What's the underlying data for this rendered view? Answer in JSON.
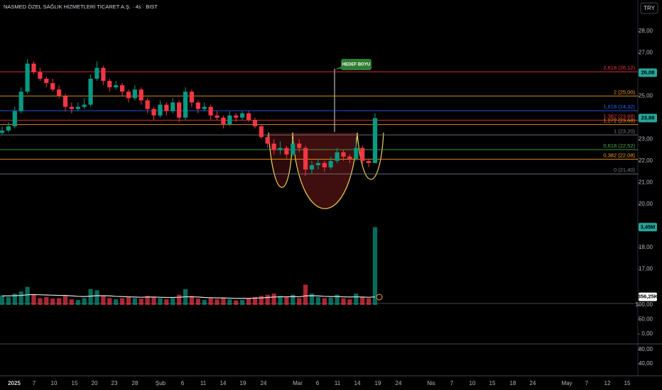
{
  "chart_data": {
    "type": "candlestick",
    "title": "NASMED ÖZEL SAĞLIK HİZMETLERİ TİCARET A.Ş. · 4s · BIST",
    "currency_button": "TRY",
    "annotation": "HEDEF BOYU",
    "ylim": [
      15.34,
      29.44
    ],
    "yticks": [
      {
        "value": 28,
        "label": "28,00"
      },
      {
        "value": 27,
        "label": "27,00"
      },
      {
        "value": 25,
        "label": "25,00"
      },
      {
        "value": 23,
        "label": "23,00"
      },
      {
        "value": 22,
        "label": "22,00"
      },
      {
        "value": 21,
        "label": "21,00"
      },
      {
        "value": 20,
        "label": "20,00"
      },
      {
        "value": 18,
        "label": "18,00"
      },
      {
        "value": 17,
        "label": "17,00"
      }
    ],
    "up_color": "#089981",
    "down_color": "#f23645",
    "ohlc": [
      [
        23.3,
        23.6,
        23.2,
        23.4
      ],
      [
        23.4,
        23.8,
        23.3,
        23.6
      ],
      [
        23.6,
        24.5,
        23.5,
        24.3
      ],
      [
        24.3,
        25.4,
        24.2,
        25.2
      ],
      [
        25.2,
        26.7,
        25.1,
        26.5
      ],
      [
        26.5,
        26.6,
        26.0,
        26.1
      ],
      [
        26.1,
        26.3,
        25.7,
        25.8
      ],
      [
        25.8,
        25.9,
        25.4,
        25.6
      ],
      [
        25.6,
        25.8,
        25.2,
        25.3
      ],
      [
        25.3,
        25.5,
        24.9,
        25.0
      ],
      [
        25.0,
        25.1,
        24.3,
        24.5
      ],
      [
        24.5,
        24.7,
        24.2,
        24.4
      ],
      [
        24.4,
        24.7,
        24.3,
        24.5
      ],
      [
        24.5,
        24.9,
        24.4,
        24.6
      ],
      [
        24.6,
        26.0,
        24.5,
        25.8
      ],
      [
        25.8,
        26.6,
        25.7,
        26.3
      ],
      [
        26.3,
        26.4,
        25.5,
        25.7
      ],
      [
        25.7,
        25.8,
        25.2,
        25.4
      ],
      [
        25.4,
        25.7,
        25.3,
        25.5
      ],
      [
        25.5,
        25.6,
        25.0,
        25.2
      ],
      [
        25.2,
        25.3,
        24.7,
        24.9
      ],
      [
        24.9,
        25.5,
        24.8,
        25.3
      ],
      [
        25.3,
        25.4,
        24.6,
        24.8
      ],
      [
        24.8,
        24.9,
        24.2,
        24.4
      ],
      [
        24.4,
        24.5,
        23.9,
        24.1
      ],
      [
        24.1,
        24.8,
        24.0,
        24.6
      ],
      [
        24.6,
        24.7,
        24.1,
        24.3
      ],
      [
        24.3,
        24.9,
        24.2,
        24.7
      ],
      [
        24.7,
        24.8,
        23.8,
        24.0
      ],
      [
        24.0,
        25.4,
        23.9,
        25.2
      ],
      [
        25.2,
        25.3,
        24.5,
        24.7
      ],
      [
        24.7,
        24.8,
        24.2,
        24.4
      ],
      [
        24.4,
        24.7,
        24.3,
        24.5
      ],
      [
        24.5,
        24.6,
        23.9,
        24.1
      ],
      [
        24.1,
        24.3,
        23.9,
        24.0
      ],
      [
        24.0,
        24.1,
        23.5,
        23.7
      ],
      [
        23.7,
        24.3,
        23.6,
        24.1
      ],
      [
        24.1,
        24.2,
        23.8,
        24.0
      ],
      [
        24.0,
        24.3,
        23.9,
        24.2
      ],
      [
        24.2,
        24.3,
        23.8,
        23.9
      ],
      [
        23.9,
        24.0,
        23.5,
        23.6
      ],
      [
        23.6,
        23.7,
        23.0,
        23.1
      ],
      [
        23.1,
        23.2,
        22.6,
        22.8
      ],
      [
        22.8,
        23.0,
        22.3,
        22.5
      ],
      [
        22.5,
        22.9,
        22.3,
        22.6
      ],
      [
        22.6,
        22.7,
        22.1,
        22.3
      ],
      [
        22.3,
        23.0,
        22.2,
        22.8
      ],
      [
        22.8,
        23.0,
        22.4,
        22.6
      ],
      [
        22.6,
        22.7,
        21.3,
        21.6
      ],
      [
        21.6,
        22.0,
        21.4,
        21.8
      ],
      [
        21.8,
        22.1,
        21.6,
        21.9
      ],
      [
        21.9,
        22.0,
        21.5,
        21.7
      ],
      [
        21.7,
        22.2,
        21.6,
        22.0
      ],
      [
        22.0,
        22.6,
        21.9,
        22.4
      ],
      [
        22.4,
        22.5,
        22.0,
        22.2
      ],
      [
        22.2,
        22.3,
        21.9,
        22.1
      ],
      [
        22.1,
        23.1,
        22.0,
        22.6
      ],
      [
        22.6,
        22.7,
        21.8,
        22.0
      ],
      [
        22.0,
        22.1,
        21.7,
        21.9
      ],
      [
        21.9,
        24.2,
        21.9,
        23.98
      ]
    ],
    "current_price": {
      "value": 23.98,
      "label": "23,98"
    },
    "high_price": {
      "value": 26.08,
      "label": "26,08"
    },
    "fib_levels": [
      {
        "value": 26.12,
        "label": "2,618 (26,12)",
        "color": "#f23645"
      },
      {
        "value": 25.0,
        "label": "2 (25,00)",
        "color": "#f7a21b"
      },
      {
        "value": 24.32,
        "label": "1,618 (24,32)",
        "color": "#2962ff"
      },
      {
        "value": 23.88,
        "label": "1,382 (23,88)",
        "color": "#f23645"
      },
      {
        "value": 23.68,
        "label": "1,272 (23,68)",
        "color": "#f7a21b"
      },
      {
        "value": 23.2,
        "label": "1 (23,20)",
        "color": "#787b86"
      },
      {
        "value": 22.52,
        "label": "0,618 (22,52)",
        "color": "#4caf50"
      },
      {
        "value": 22.08,
        "label": "0,382 (22,08)",
        "color": "#f7a21b"
      },
      {
        "value": 21.4,
        "label": "0 (21,40)",
        "color": "#787b86"
      }
    ],
    "volume": {
      "values": [
        0.42,
        0.35,
        0.5,
        0.6,
        0.8,
        0.45,
        0.3,
        0.35,
        0.28,
        0.3,
        0.4,
        0.25,
        0.22,
        0.3,
        0.7,
        0.65,
        0.4,
        0.3,
        0.25,
        0.3,
        0.35,
        0.3,
        0.28,
        0.4,
        0.35,
        0.3,
        0.25,
        0.3,
        0.45,
        0.7,
        0.4,
        0.28,
        0.22,
        0.3,
        0.25,
        0.3,
        0.25,
        0.2,
        0.22,
        0.3,
        0.35,
        0.4,
        0.45,
        0.5,
        0.4,
        0.35,
        0.45,
        0.3,
        0.9,
        0.5,
        0.35,
        0.3,
        0.32,
        0.45,
        0.3,
        0.25,
        0.5,
        0.35,
        0.3,
        3.45
      ],
      "current": {
        "value": 3.45,
        "label": "3,45M"
      },
      "ma": [
        0.4,
        0.4,
        0.41,
        0.42,
        0.45,
        0.46,
        0.45,
        0.44,
        0.43,
        0.42,
        0.42,
        0.4,
        0.38,
        0.37,
        0.39,
        0.41,
        0.41,
        0.4,
        0.38,
        0.37,
        0.36,
        0.35,
        0.34,
        0.35,
        0.35,
        0.34,
        0.33,
        0.33,
        0.34,
        0.36,
        0.36,
        0.35,
        0.33,
        0.32,
        0.31,
        0.31,
        0.3,
        0.29,
        0.29,
        0.29,
        0.3,
        0.31,
        0.33,
        0.35,
        0.36,
        0.36,
        0.37,
        0.36,
        0.4,
        0.41,
        0.4,
        0.38,
        0.37,
        0.37,
        0.36,
        0.35,
        0.36,
        0.35,
        0.34,
        0.35625
      ],
      "ma_current": {
        "value": 0.35625,
        "label": "356,25K"
      }
    },
    "panes": [
      {
        "ylim": [
          -34,
          105
        ],
        "yticks": [
          {
            "value": 100,
            "label": "100,00"
          },
          {
            "value": 50,
            "label": "50,00"
          },
          {
            "value": 0,
            "label": "0,00"
          }
        ]
      },
      {
        "ylim": [
          6,
          96
        ],
        "yticks": [
          {
            "value": 80,
            "label": "80,00"
          },
          {
            "value": 40,
            "label": "40,00"
          }
        ]
      }
    ],
    "time_labels": [
      "2025",
      "7",
      "10",
      "15",
      "20",
      "23",
      "28",
      "Şub",
      "6",
      "11",
      "14",
      "19",
      "24",
      "Mar",
      "6",
      "11",
      "14",
      "19",
      "24",
      "Nis",
      "7",
      "10",
      "15",
      "18",
      "24",
      "May",
      "7",
      "12",
      "15"
    ]
  }
}
